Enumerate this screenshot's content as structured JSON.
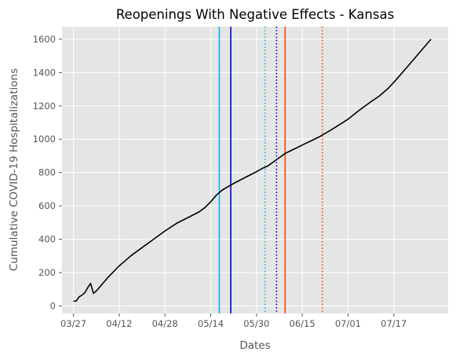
{
  "chart_data": {
    "type": "line",
    "title": "Reopenings With Negative Effects - Kansas",
    "xlabel": "Dates",
    "ylabel": "Cumulative COVID-19 Hospitalizations",
    "x_ticks": [
      "03/27",
      "04/12",
      "04/28",
      "05/14",
      "05/30",
      "06/15",
      "07/01",
      "07/17"
    ],
    "y_ticks": [
      0,
      200,
      400,
      600,
      800,
      1000,
      1200,
      1400,
      1600
    ],
    "xlim": [
      "2020-03-23",
      "2020-08-05"
    ],
    "ylim": [
      -45,
      1675
    ],
    "grid": true,
    "background": "#e5e5e5",
    "series": [
      {
        "color": "#000000",
        "points": [
          [
            "2020-03-27",
            28
          ],
          [
            "2020-03-28",
            30
          ],
          [
            "2020-03-29",
            55
          ],
          [
            "2020-03-30",
            65
          ],
          [
            "2020-03-31",
            80
          ],
          [
            "2020-04-01",
            110
          ],
          [
            "2020-04-02",
            135
          ],
          [
            "2020-04-03",
            75
          ],
          [
            "2020-04-04",
            90
          ],
          [
            "2020-04-05",
            110
          ],
          [
            "2020-04-06",
            130
          ],
          [
            "2020-04-07",
            150
          ],
          [
            "2020-04-08",
            170
          ],
          [
            "2020-04-10",
            205
          ],
          [
            "2020-04-12",
            240
          ],
          [
            "2020-04-14",
            270
          ],
          [
            "2020-04-16",
            300
          ],
          [
            "2020-04-20",
            350
          ],
          [
            "2020-04-24",
            400
          ],
          [
            "2020-04-28",
            450
          ],
          [
            "2020-05-02",
            495
          ],
          [
            "2020-05-06",
            530
          ],
          [
            "2020-05-10",
            565
          ],
          [
            "2020-05-12",
            590
          ],
          [
            "2020-05-14",
            625
          ],
          [
            "2020-05-16",
            665
          ],
          [
            "2020-05-18",
            695
          ],
          [
            "2020-05-20",
            715
          ],
          [
            "2020-05-22",
            735
          ],
          [
            "2020-05-26",
            770
          ],
          [
            "2020-05-30",
            805
          ],
          [
            "2020-06-01",
            825
          ],
          [
            "2020-06-03",
            840
          ],
          [
            "2020-06-05",
            865
          ],
          [
            "2020-06-07",
            890
          ],
          [
            "2020-06-09",
            915
          ],
          [
            "2020-06-12",
            940
          ],
          [
            "2020-06-15",
            965
          ],
          [
            "2020-06-18",
            990
          ],
          [
            "2020-06-21",
            1015
          ],
          [
            "2020-06-25",
            1055
          ],
          [
            "2020-07-01",
            1120
          ],
          [
            "2020-07-05",
            1175
          ],
          [
            "2020-07-09",
            1225
          ],
          [
            "2020-07-12",
            1260
          ],
          [
            "2020-07-15",
            1305
          ],
          [
            "2020-07-18",
            1360
          ],
          [
            "2020-07-21",
            1420
          ],
          [
            "2020-07-24",
            1480
          ],
          [
            "2020-07-27",
            1540
          ],
          [
            "2020-07-30",
            1600
          ]
        ]
      }
    ],
    "vertical_lines": [
      {
        "date": "2020-05-17",
        "color": "#00b4f0",
        "style": "solid"
      },
      {
        "date": "2020-05-21",
        "color": "#0000c8",
        "style": "solid"
      },
      {
        "date": "2020-06-02",
        "color": "#00c8d7",
        "style": "dotted"
      },
      {
        "date": "2020-06-06",
        "color": "#0000c8",
        "style": "dotted"
      },
      {
        "date": "2020-06-09",
        "color": "#ff4500",
        "style": "solid"
      },
      {
        "date": "2020-06-22",
        "color": "#ff4500",
        "style": "dotted"
      }
    ]
  }
}
